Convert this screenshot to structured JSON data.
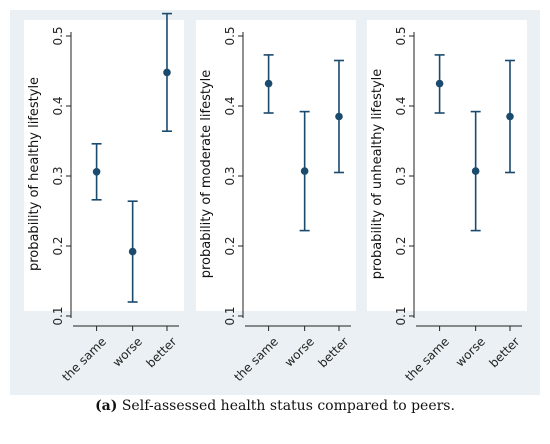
{
  "colors": {
    "outer_bg": "#eaf0f3",
    "plot_bg": "#ffffff",
    "marker": "#1a4a6e"
  },
  "caption": {
    "label": "(a)",
    "text": " Self-assessed health status compared to peers."
  },
  "chart_data": [
    {
      "type": "scatter",
      "ylabel": "probability of healthy lifestyle",
      "categories": [
        "the same",
        "worse",
        "better"
      ],
      "values": [
        0.306,
        0.192,
        0.448
      ],
      "ci_low": [
        0.266,
        0.12,
        0.364
      ],
      "ci_high": [
        0.346,
        0.264,
        0.532
      ],
      "ylim": [
        0.1,
        0.5
      ],
      "yticks": [
        "0.1",
        "0.2",
        "0.3",
        "0.4",
        "0.5"
      ],
      "grid": false
    },
    {
      "type": "scatter",
      "ylabel": "probability of moderate lifestyle",
      "categories": [
        "the same",
        "worse",
        "better"
      ],
      "values": [
        0.432,
        0.307,
        0.385
      ],
      "ci_low": [
        0.39,
        0.222,
        0.305
      ],
      "ci_high": [
        0.473,
        0.392,
        0.465
      ],
      "ylim": [
        0.1,
        0.5
      ],
      "yticks": [
        "0.1",
        "0.2",
        "0.3",
        "0.4",
        "0.5"
      ],
      "grid": false
    },
    {
      "type": "scatter",
      "ylabel": "probability of unhealthy lifestyle",
      "categories": [
        "the same",
        "worse",
        "better"
      ],
      "values": [
        0.432,
        0.307,
        0.385
      ],
      "ci_low": [
        0.39,
        0.222,
        0.305
      ],
      "ci_high": [
        0.473,
        0.392,
        0.465
      ],
      "ylim": [
        0.1,
        0.5
      ],
      "yticks": [
        "0.1",
        "0.2",
        "0.3",
        "0.4",
        "0.5"
      ],
      "grid": false
    }
  ]
}
